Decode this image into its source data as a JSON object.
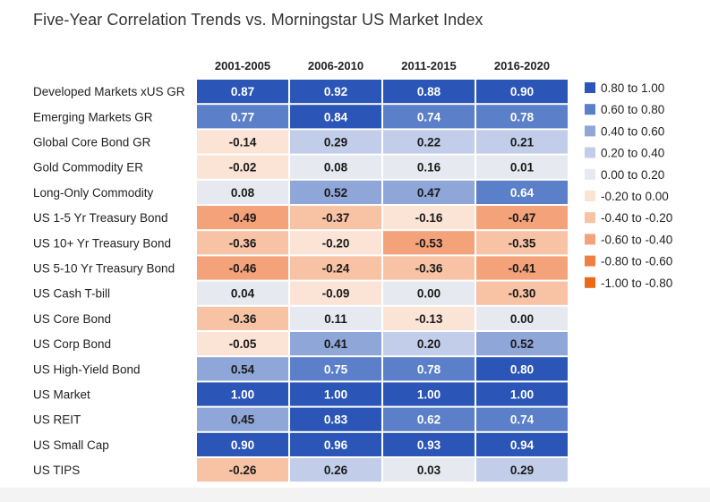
{
  "title": "Five-Year Correlation Trends vs. Morningstar US Market Index",
  "chart_data": {
    "type": "heatmap",
    "title": "Five-Year Correlation Trends vs. Morningstar US Market Index",
    "columns": [
      "2001-2005",
      "2006-2010",
      "2011-2015",
      "2016-2020"
    ],
    "rows": [
      "Developed Markets xUS GR",
      "Emerging Markets GR",
      "Global Core Bond GR",
      "Gold Commodity ER",
      "Long-Only Commodity",
      "US 1-5 Yr Treasury Bond",
      "US 10+ Yr Treasury Bond",
      "US 5-10 Yr Treasury Bond",
      "US Cash T-bill",
      "US Core Bond",
      "US Corp Bond",
      "US High-Yield Bond",
      "US Market",
      "US REIT",
      "US Small Cap",
      "US TIPS"
    ],
    "values": [
      [
        "0.87",
        "0.92",
        "0.88",
        "0.90"
      ],
      [
        "0.77",
        "0.84",
        "0.74",
        "0.78"
      ],
      [
        "-0.14",
        "0.29",
        "0.22",
        "0.21"
      ],
      [
        "-0.02",
        "0.08",
        "0.16",
        "0.01"
      ],
      [
        "0.08",
        "0.52",
        "0.47",
        "0.64"
      ],
      [
        "-0.49",
        "-0.37",
        "-0.16",
        "-0.47"
      ],
      [
        "-0.36",
        "-0.20",
        "-0.53",
        "-0.35"
      ],
      [
        "-0.46",
        "-0.24",
        "-0.36",
        "-0.41"
      ],
      [
        "0.04",
        "-0.09",
        "0.00",
        "-0.30"
      ],
      [
        "-0.36",
        "0.11",
        "-0.13",
        "0.00"
      ],
      [
        "-0.05",
        "0.41",
        "0.20",
        "0.52"
      ],
      [
        "0.54",
        "0.75",
        "0.78",
        "0.80"
      ],
      [
        "1.00",
        "1.00",
        "1.00",
        "1.00"
      ],
      [
        "0.45",
        "0.83",
        "0.62",
        "0.74"
      ],
      [
        "0.90",
        "0.96",
        "0.93",
        "0.94"
      ],
      [
        "-0.26",
        "0.26",
        "0.03",
        "0.29"
      ]
    ],
    "legend": [
      {
        "label": "0.80 to 1.00",
        "color": "#2b55b6"
      },
      {
        "label": "0.60 to 0.80",
        "color": "#5b7fc8"
      },
      {
        "label": "0.40 to 0.60",
        "color": "#8fa6d8"
      },
      {
        "label": "0.20 to 0.40",
        "color": "#c2cde9"
      },
      {
        "label": "0.00 to 0.20",
        "color": "#e6e9ef"
      },
      {
        "label": "-0.20 to 0.00",
        "color": "#fbe3d6"
      },
      {
        "label": "-0.40 to -0.20",
        "color": "#f8c2a4"
      },
      {
        "label": "-0.60 to -0.40",
        "color": "#f4a27a"
      },
      {
        "label": "-0.80 to -0.60",
        "color": "#ef7f42"
      },
      {
        "label": "-1.00 to -0.80",
        "color": "#ea6a17"
      }
    ],
    "legend_position": "right"
  }
}
